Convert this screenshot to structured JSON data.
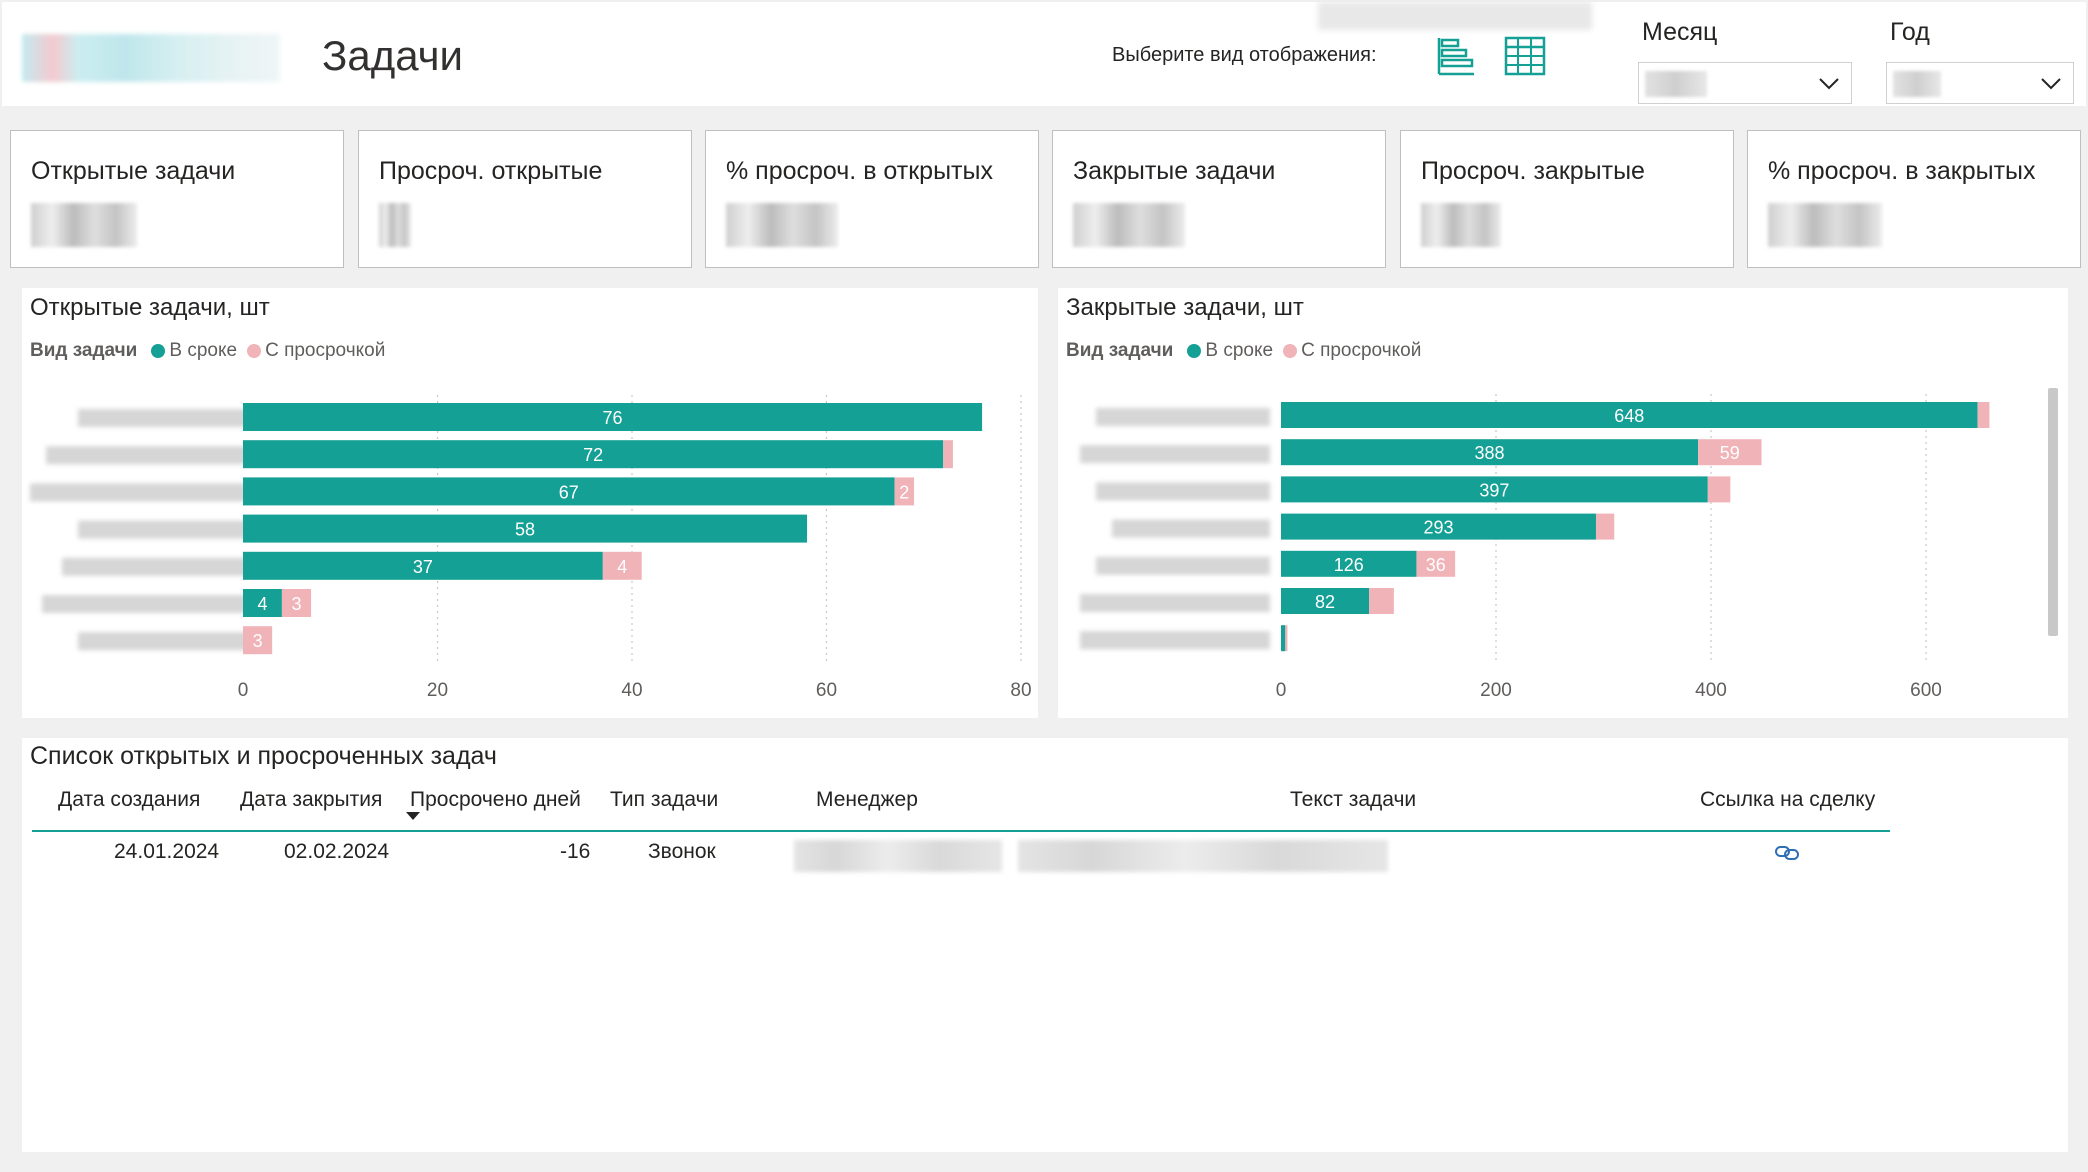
{
  "header": {
    "title": "Задачи",
    "view_label": "Выберите вид отображения:",
    "view_icons": [
      "bar-chart-icon",
      "table-grid-icon"
    ],
    "slicers": [
      {
        "label": "Месяц"
      },
      {
        "label": "Год"
      }
    ]
  },
  "kpis": [
    {
      "label": "Открытые задачи"
    },
    {
      "label": "Просроч. открытые"
    },
    {
      "label": "% просроч. в открытых"
    },
    {
      "label": "Закрытые задачи"
    },
    {
      "label": "Просроч. закрытые"
    },
    {
      "label": "% просроч. в закрытых"
    }
  ],
  "colors": {
    "on_time": "#14a094",
    "overdue": "#f0b3b8",
    "accent": "#14a094"
  },
  "chart_data": [
    {
      "type": "bar",
      "orientation": "horizontal",
      "stacked": true,
      "title": "Открытые задачи, шт",
      "legend_title": "Вид задачи",
      "legend_position": "top-left",
      "series": [
        {
          "name": "В сроке",
          "values": [
            76,
            72,
            67,
            58,
            37,
            4,
            0
          ]
        },
        {
          "name": "С просрочкой",
          "values": [
            0,
            1,
            2,
            0,
            4,
            3,
            3
          ]
        }
      ],
      "data_labels": {
        "on_time": [
          "76",
          "72",
          "67",
          "58",
          "37",
          "4",
          ""
        ],
        "overdue": [
          "",
          "",
          "2",
          "",
          "4",
          "3",
          "3"
        ]
      },
      "xlim": [
        0,
        80
      ],
      "xticks": [
        "0",
        "20",
        "40",
        "60",
        "80"
      ],
      "grid": true
    },
    {
      "type": "bar",
      "orientation": "horizontal",
      "stacked": true,
      "title": "Закрытые задачи, шт",
      "legend_title": "Вид задачи",
      "legend_position": "top-left",
      "series": [
        {
          "name": "В сроке",
          "values": [
            648,
            388,
            397,
            293,
            126,
            82,
            4
          ]
        },
        {
          "name": "С просрочкой",
          "values": [
            11,
            59,
            21,
            17,
            36,
            23,
            2
          ]
        }
      ],
      "data_labels": {
        "on_time": [
          "648",
          "388",
          "397",
          "293",
          "126",
          "82",
          ""
        ],
        "overdue": [
          "",
          "59",
          "",
          "",
          "36",
          "",
          ""
        ]
      },
      "xlim": [
        0,
        720
      ],
      "xticks": [
        "0",
        "200",
        "400",
        "600"
      ],
      "grid": true
    }
  ],
  "table": {
    "title": "Список открытых и просроченных задач",
    "columns": [
      "Дата создания",
      "Дата закрытия",
      "Просрочено дней",
      "Тип задачи",
      "Менеджер",
      "Текст задачи",
      "Ссылка на сделку"
    ],
    "rows": [
      {
        "created": "24.01.2024",
        "closed": "02.02.2024",
        "overdue_days": "-16",
        "type": "Звонок"
      }
    ]
  }
}
